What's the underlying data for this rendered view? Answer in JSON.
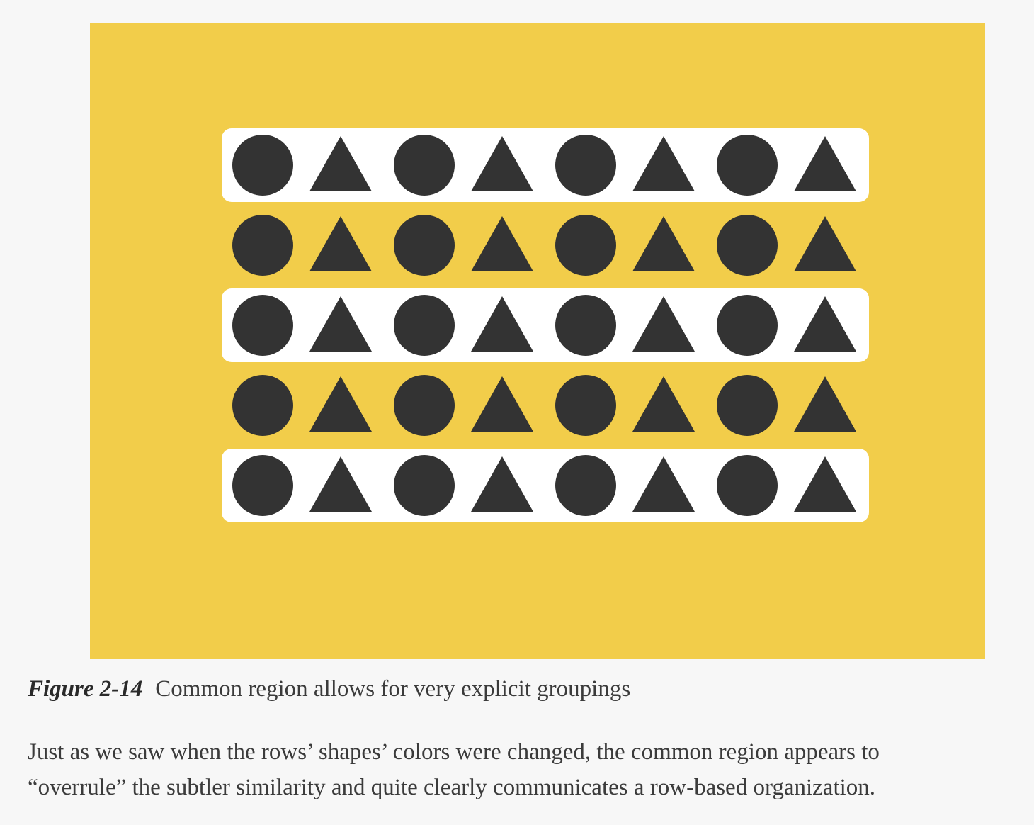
{
  "figure": {
    "background_color": "#f2cd4a",
    "region_color": "#ffffff",
    "shape_color": "#333333",
    "rows": [
      {
        "shapes": [
          "circle",
          "triangle",
          "circle",
          "triangle",
          "circle",
          "triangle",
          "circle",
          "triangle"
        ],
        "enclosed": true
      },
      {
        "shapes": [
          "circle",
          "triangle",
          "circle",
          "triangle",
          "circle",
          "triangle",
          "circle",
          "triangle"
        ],
        "enclosed": false
      },
      {
        "shapes": [
          "circle",
          "triangle",
          "circle",
          "triangle",
          "circle",
          "triangle",
          "circle",
          "triangle"
        ],
        "enclosed": true
      },
      {
        "shapes": [
          "circle",
          "triangle",
          "circle",
          "triangle",
          "circle",
          "triangle",
          "circle",
          "triangle"
        ],
        "enclosed": false
      },
      {
        "shapes": [
          "circle",
          "triangle",
          "circle",
          "triangle",
          "circle",
          "triangle",
          "circle",
          "triangle"
        ],
        "enclosed": true
      }
    ]
  },
  "caption": {
    "label": "Figure 2-14",
    "text": "Common region allows for very explicit groupings"
  },
  "body": {
    "line1": "Just as we saw when the rows’ shapes’ colors were changed, the common region appears to",
    "line2": "“overrule” the subtler similarity and quite clearly communicates a row-based organization."
  }
}
